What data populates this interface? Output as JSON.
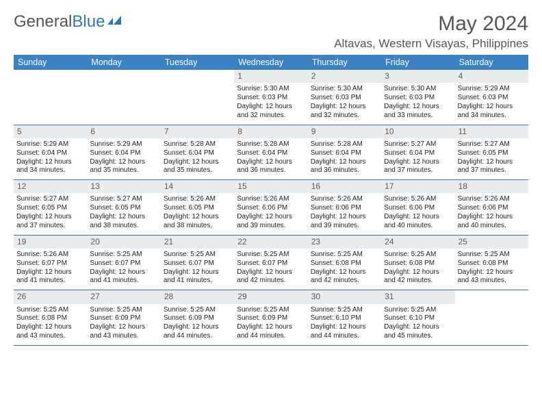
{
  "brand": {
    "part1": "General",
    "part2": "Blue"
  },
  "title": "May 2024",
  "location": "Altavas, Western Visayas, Philippines",
  "colors": {
    "header_bg": "#3b82c4",
    "header_text": "#ffffff",
    "daynum_bg": "#e8ecef",
    "daynum_text": "#5a5a5a",
    "body_text": "#222222",
    "border": "#3b6fa0",
    "brand_gray": "#555555",
    "brand_blue": "#2b77c0"
  },
  "typography": {
    "title_fontsize": 30,
    "location_fontsize": 17,
    "header_fontsize": 12.5,
    "cell_fontsize": 10,
    "daynum_fontsize": 12
  },
  "day_names": [
    "Sunday",
    "Monday",
    "Tuesday",
    "Wednesday",
    "Thursday",
    "Friday",
    "Saturday"
  ],
  "weeks": [
    [
      null,
      null,
      null,
      {
        "n": "1",
        "r": "Sunrise: 5:30 AM",
        "s": "Sunset: 6:03 PM",
        "d": "Daylight: 12 hours and 32 minutes."
      },
      {
        "n": "2",
        "r": "Sunrise: 5:30 AM",
        "s": "Sunset: 6:03 PM",
        "d": "Daylight: 12 hours and 32 minutes."
      },
      {
        "n": "3",
        "r": "Sunrise: 5:30 AM",
        "s": "Sunset: 6:03 PM",
        "d": "Daylight: 12 hours and 33 minutes."
      },
      {
        "n": "4",
        "r": "Sunrise: 5:29 AM",
        "s": "Sunset: 6:03 PM",
        "d": "Daylight: 12 hours and 34 minutes."
      }
    ],
    [
      {
        "n": "5",
        "r": "Sunrise: 5:29 AM",
        "s": "Sunset: 6:04 PM",
        "d": "Daylight: 12 hours and 34 minutes."
      },
      {
        "n": "6",
        "r": "Sunrise: 5:29 AM",
        "s": "Sunset: 6:04 PM",
        "d": "Daylight: 12 hours and 35 minutes."
      },
      {
        "n": "7",
        "r": "Sunrise: 5:28 AM",
        "s": "Sunset: 6:04 PM",
        "d": "Daylight: 12 hours and 35 minutes."
      },
      {
        "n": "8",
        "r": "Sunrise: 5:28 AM",
        "s": "Sunset: 6:04 PM",
        "d": "Daylight: 12 hours and 36 minutes."
      },
      {
        "n": "9",
        "r": "Sunrise: 5:28 AM",
        "s": "Sunset: 6:04 PM",
        "d": "Daylight: 12 hours and 36 minutes."
      },
      {
        "n": "10",
        "r": "Sunrise: 5:27 AM",
        "s": "Sunset: 6:04 PM",
        "d": "Daylight: 12 hours and 37 minutes."
      },
      {
        "n": "11",
        "r": "Sunrise: 5:27 AM",
        "s": "Sunset: 6:05 PM",
        "d": "Daylight: 12 hours and 37 minutes."
      }
    ],
    [
      {
        "n": "12",
        "r": "Sunrise: 5:27 AM",
        "s": "Sunset: 6:05 PM",
        "d": "Daylight: 12 hours and 37 minutes."
      },
      {
        "n": "13",
        "r": "Sunrise: 5:27 AM",
        "s": "Sunset: 6:05 PM",
        "d": "Daylight: 12 hours and 38 minutes."
      },
      {
        "n": "14",
        "r": "Sunrise: 5:26 AM",
        "s": "Sunset: 6:05 PM",
        "d": "Daylight: 12 hours and 38 minutes."
      },
      {
        "n": "15",
        "r": "Sunrise: 5:26 AM",
        "s": "Sunset: 6:06 PM",
        "d": "Daylight: 12 hours and 39 minutes."
      },
      {
        "n": "16",
        "r": "Sunrise: 5:26 AM",
        "s": "Sunset: 6:06 PM",
        "d": "Daylight: 12 hours and 39 minutes."
      },
      {
        "n": "17",
        "r": "Sunrise: 5:26 AM",
        "s": "Sunset: 6:06 PM",
        "d": "Daylight: 12 hours and 40 minutes."
      },
      {
        "n": "18",
        "r": "Sunrise: 5:26 AM",
        "s": "Sunset: 6:06 PM",
        "d": "Daylight: 12 hours and 40 minutes."
      }
    ],
    [
      {
        "n": "19",
        "r": "Sunrise: 5:26 AM",
        "s": "Sunset: 6:07 PM",
        "d": "Daylight: 12 hours and 41 minutes."
      },
      {
        "n": "20",
        "r": "Sunrise: 5:25 AM",
        "s": "Sunset: 6:07 PM",
        "d": "Daylight: 12 hours and 41 minutes."
      },
      {
        "n": "21",
        "r": "Sunrise: 5:25 AM",
        "s": "Sunset: 6:07 PM",
        "d": "Daylight: 12 hours and 41 minutes."
      },
      {
        "n": "22",
        "r": "Sunrise: 5:25 AM",
        "s": "Sunset: 6:07 PM",
        "d": "Daylight: 12 hours and 42 minutes."
      },
      {
        "n": "23",
        "r": "Sunrise: 5:25 AM",
        "s": "Sunset: 6:08 PM",
        "d": "Daylight: 12 hours and 42 minutes."
      },
      {
        "n": "24",
        "r": "Sunrise: 5:25 AM",
        "s": "Sunset: 6:08 PM",
        "d": "Daylight: 12 hours and 42 minutes."
      },
      {
        "n": "25",
        "r": "Sunrise: 5:25 AM",
        "s": "Sunset: 6:08 PM",
        "d": "Daylight: 12 hours and 43 minutes."
      }
    ],
    [
      {
        "n": "26",
        "r": "Sunrise: 5:25 AM",
        "s": "Sunset: 6:08 PM",
        "d": "Daylight: 12 hours and 43 minutes."
      },
      {
        "n": "27",
        "r": "Sunrise: 5:25 AM",
        "s": "Sunset: 6:09 PM",
        "d": "Daylight: 12 hours and 43 minutes."
      },
      {
        "n": "28",
        "r": "Sunrise: 5:25 AM",
        "s": "Sunset: 6:09 PM",
        "d": "Daylight: 12 hours and 44 minutes."
      },
      {
        "n": "29",
        "r": "Sunrise: 5:25 AM",
        "s": "Sunset: 6:09 PM",
        "d": "Daylight: 12 hours and 44 minutes."
      },
      {
        "n": "30",
        "r": "Sunrise: 5:25 AM",
        "s": "Sunset: 6:10 PM",
        "d": "Daylight: 12 hours and 44 minutes."
      },
      {
        "n": "31",
        "r": "Sunrise: 5:25 AM",
        "s": "Sunset: 6:10 PM",
        "d": "Daylight: 12 hours and 45 minutes."
      },
      null
    ]
  ]
}
